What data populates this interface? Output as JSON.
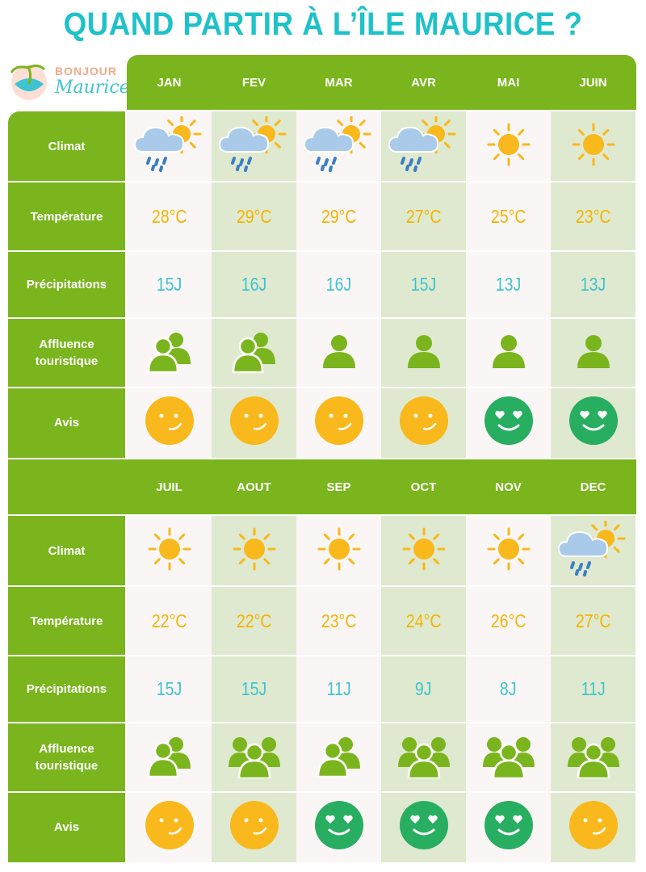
{
  "title": "QUAND PARTIR À L’ÎLE MAURICE ?",
  "logo": {
    "line1": "BONJOUR",
    "line2": "Maurice"
  },
  "row_labels": {
    "climat": "Climat",
    "temperature": "Température",
    "precipitations": "Précipitations",
    "affluence_1": "Affluence",
    "affluence_2": "touristique",
    "avis": "Avis"
  },
  "colors": {
    "green": "#7ab51d",
    "cyan": "#1ec2c8",
    "orange": "#f4b400",
    "smile_green": "#27ae60"
  },
  "blocks": [
    {
      "months": [
        {
          "name": "JAN",
          "climat": "sun-cloud-rain-icon",
          "temp": "28°C",
          "precip": "15J",
          "affluence": "two-people-icon",
          "avis": "neutral"
        },
        {
          "name": "FEV",
          "climat": "sun-cloud-rain-icon",
          "temp": "29°C",
          "precip": "16J",
          "affluence": "two-people-icon",
          "avis": "neutral"
        },
        {
          "name": "MAR",
          "climat": "sun-cloud-rain-icon",
          "temp": "29°C",
          "precip": "16J",
          "affluence": "one-person-icon",
          "avis": "neutral"
        },
        {
          "name": "AVR",
          "climat": "sun-cloud-rain-icon",
          "temp": "27°C",
          "precip": "15J",
          "affluence": "one-person-icon",
          "avis": "neutral"
        },
        {
          "name": "MAI",
          "climat": "sun-icon",
          "temp": "25°C",
          "precip": "13J",
          "affluence": "one-person-icon",
          "avis": "love"
        },
        {
          "name": "JUIN",
          "climat": "sun-icon",
          "temp": "23°C",
          "precip": "13J",
          "affluence": "one-person-icon",
          "avis": "love"
        }
      ]
    },
    {
      "months": [
        {
          "name": "JUIL",
          "climat": "sun-icon",
          "temp": "22°C",
          "precip": "15J",
          "affluence": "two-people-icon",
          "avis": "neutral"
        },
        {
          "name": "AOUT",
          "climat": "sun-icon",
          "temp": "22°C",
          "precip": "15J",
          "affluence": "crowd-icon",
          "avis": "neutral"
        },
        {
          "name": "SEP",
          "climat": "sun-icon",
          "temp": "23°C",
          "precip": "11J",
          "affluence": "two-people-icon",
          "avis": "love"
        },
        {
          "name": "OCT",
          "climat": "sun-icon",
          "temp": "24°C",
          "precip": "9J",
          "affluence": "crowd-icon",
          "avis": "love"
        },
        {
          "name": "NOV",
          "climat": "sun-icon",
          "temp": "26°C",
          "precip": "8J",
          "affluence": "crowd-icon",
          "avis": "love"
        },
        {
          "name": "DEC",
          "climat": "sun-cloud-rain-icon",
          "temp": "27°C",
          "precip": "11J",
          "affluence": "crowd-icon",
          "avis": "neutral"
        }
      ]
    }
  ]
}
